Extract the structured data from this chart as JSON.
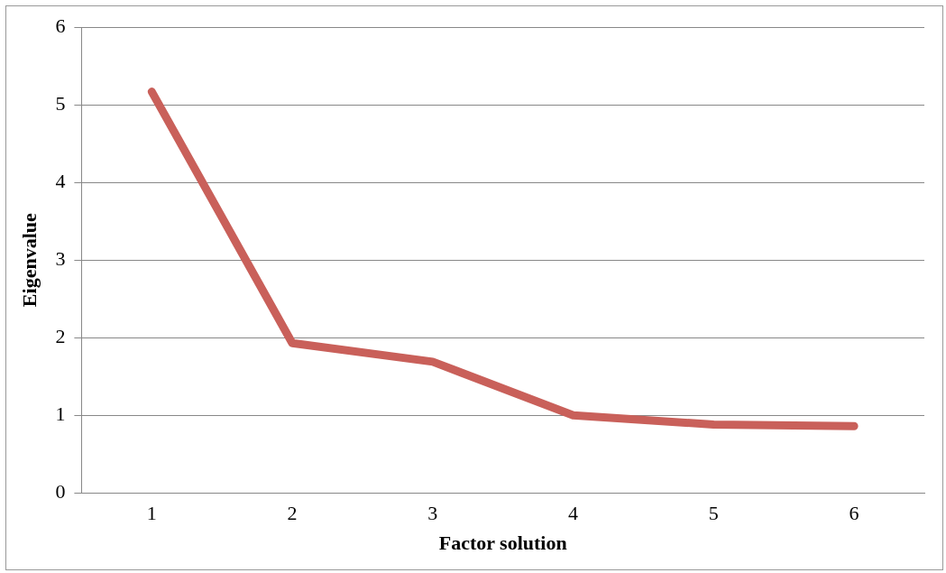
{
  "chart_data": {
    "type": "line",
    "xlabel": "Factor solution",
    "ylabel": "Eigenvalue",
    "categories": [
      "1",
      "2",
      "3",
      "4",
      "5",
      "6"
    ],
    "series": [
      {
        "color": "#c9605a",
        "values": [
          5.17,
          1.93,
          1.69,
          1.0,
          0.88,
          0.86
        ]
      }
    ],
    "ylim": [
      0,
      6
    ],
    "yticks": [
      0,
      1,
      2,
      3,
      4,
      5,
      6
    ],
    "grid": "y",
    "legend": false,
    "marker": "none",
    "line_style": "solid"
  }
}
